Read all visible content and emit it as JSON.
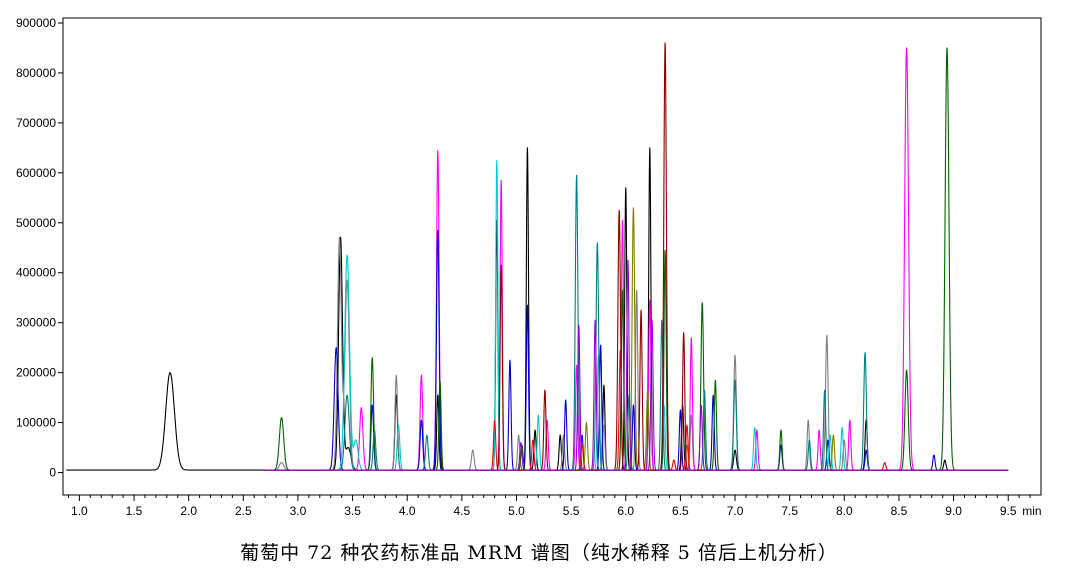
{
  "chart_data": {
    "type": "line",
    "title": "葡萄中 72 种农药标准品 MRM 谱图（纯水稀释 5 倍后上机分析）",
    "xlabel": "min",
    "ylabel": "",
    "xlim": [
      0.85,
      9.8
    ],
    "ylim": [
      -45000,
      910000
    ],
    "grid": false,
    "x_ticks": [
      1.0,
      1.5,
      2.0,
      2.5,
      3.0,
      3.5,
      4.0,
      4.5,
      5.0,
      5.5,
      6.0,
      6.5,
      7.0,
      7.5,
      8.0,
      8.5,
      9.0,
      9.5
    ],
    "x_tick_labels": [
      "1.0",
      "1.5",
      "2.0",
      "2.5",
      "3.0",
      "3.5",
      "4.0",
      "4.5",
      "5.0",
      "5.5",
      "6.0",
      "6.5",
      "7.0",
      "7.5",
      "8.0",
      "8.5",
      "9.0",
      "9.5"
    ],
    "x_unit_label": "min",
    "y_ticks": [
      0,
      100000,
      200000,
      300000,
      400000,
      500000,
      600000,
      700000,
      800000,
      900000
    ],
    "y_tick_labels": [
      "0",
      "100000",
      "200000",
      "300000",
      "400000",
      "500000",
      "600000",
      "700000",
      "800000",
      "900000"
    ],
    "baseline": 5000,
    "series": [
      {
        "color": "#000000",
        "peaks": [
          [
            1.83,
            195000,
            0.04
          ],
          [
            3.39,
            465000,
            0.018
          ],
          [
            3.46,
            45000,
            0.025
          ],
          [
            3.9,
            150000,
            0.012
          ],
          [
            4.28,
            150000,
            0.01
          ],
          [
            4.82,
            500000,
            0.01
          ],
          [
            5.1,
            645000,
            0.01
          ],
          [
            5.17,
            80000,
            0.01
          ],
          [
            5.4,
            70000,
            0.01
          ],
          [
            5.8,
            170000,
            0.01
          ],
          [
            6.0,
            565000,
            0.01
          ],
          [
            6.22,
            645000,
            0.01
          ],
          [
            6.52,
            130000,
            0.01
          ],
          [
            7.0,
            40000,
            0.012
          ],
          [
            8.2,
            100000,
            0.01
          ],
          [
            8.92,
            20000,
            0.01
          ]
        ]
      },
      {
        "color": "#808080",
        "peaks": [
          [
            1.83,
            15000,
            0.04
          ],
          [
            2.85,
            15000,
            0.02
          ],
          [
            3.38,
            465000,
            0.018
          ],
          [
            3.45,
            380000,
            0.02
          ],
          [
            3.9,
            190000,
            0.012
          ],
          [
            4.6,
            40000,
            0.012
          ],
          [
            5.02,
            70000,
            0.01
          ],
          [
            5.43,
            70000,
            0.01
          ],
          [
            5.8,
            90000,
            0.01
          ],
          [
            6.1,
            360000,
            0.01
          ],
          [
            6.6,
            110000,
            0.01
          ],
          [
            7.0,
            230000,
            0.012
          ],
          [
            7.67,
            100000,
            0.01
          ],
          [
            7.84,
            270000,
            0.012
          ],
          [
            8.0,
            60000,
            0.01
          ]
        ]
      },
      {
        "color": "#ff00ff",
        "peaks": [
          [
            1.83,
            125000,
            0.04
          ],
          [
            3.58,
            125000,
            0.015
          ],
          [
            4.13,
            190000,
            0.012
          ],
          [
            4.28,
            640000,
            0.012
          ],
          [
            4.86,
            580000,
            0.01
          ],
          [
            5.28,
            100000,
            0.01
          ],
          [
            5.55,
            210000,
            0.01
          ],
          [
            5.97,
            500000,
            0.01
          ],
          [
            6.22,
            340000,
            0.01
          ],
          [
            6.6,
            265000,
            0.01
          ],
          [
            7.2,
            80000,
            0.01
          ],
          [
            7.77,
            80000,
            0.01
          ],
          [
            8.05,
            100000,
            0.01
          ],
          [
            8.57,
            845000,
            0.018
          ]
        ]
      },
      {
        "color": "#0000cc",
        "peaks": [
          [
            1.83,
            45000,
            0.04
          ],
          [
            3.35,
            245000,
            0.018
          ],
          [
            3.68,
            130000,
            0.012
          ],
          [
            4.13,
            100000,
            0.012
          ],
          [
            4.28,
            480000,
            0.012
          ],
          [
            4.94,
            220000,
            0.01
          ],
          [
            5.1,
            330000,
            0.01
          ],
          [
            5.45,
            140000,
            0.01
          ],
          [
            5.6,
            70000,
            0.01
          ],
          [
            5.77,
            250000,
            0.01
          ],
          [
            6.07,
            130000,
            0.01
          ],
          [
            6.5,
            120000,
            0.01
          ],
          [
            6.8,
            150000,
            0.01
          ],
          [
            7.42,
            50000,
            0.01
          ],
          [
            7.85,
            60000,
            0.01
          ],
          [
            8.2,
            40000,
            0.01
          ],
          [
            8.82,
            30000,
            0.01
          ]
        ]
      },
      {
        "color": "#00cccc",
        "peaks": [
          [
            3.45,
            430000,
            0.022
          ],
          [
            3.53,
            60000,
            0.02
          ],
          [
            3.92,
            90000,
            0.012
          ],
          [
            4.82,
            620000,
            0.01
          ],
          [
            5.2,
            110000,
            0.01
          ],
          [
            5.75,
            230000,
            0.01
          ],
          [
            6.35,
            130000,
            0.01
          ],
          [
            7.18,
            85000,
            0.01
          ],
          [
            7.87,
            70000,
            0.01
          ],
          [
            7.98,
            85000,
            0.01
          ]
        ]
      },
      {
        "color": "#006400",
        "peaks": [
          [
            2.85,
            105000,
            0.02
          ],
          [
            3.68,
            225000,
            0.012
          ],
          [
            4.3,
            180000,
            0.01
          ],
          [
            5.05,
            50000,
            0.01
          ],
          [
            5.97,
            360000,
            0.01
          ],
          [
            6.36,
            440000,
            0.01
          ],
          [
            6.7,
            335000,
            0.012
          ],
          [
            6.82,
            180000,
            0.01
          ],
          [
            7.42,
            80000,
            0.01
          ],
          [
            8.57,
            200000,
            0.015
          ],
          [
            8.94,
            845000,
            0.018
          ]
        ]
      },
      {
        "color": "#008080",
        "peaks": [
          [
            3.45,
            150000,
            0.02
          ],
          [
            3.7,
            80000,
            0.012
          ],
          [
            4.18,
            70000,
            0.012
          ],
          [
            5.55,
            590000,
            0.012
          ],
          [
            5.74,
            455000,
            0.012
          ],
          [
            6.03,
            150000,
            0.01
          ],
          [
            6.33,
            300000,
            0.01
          ],
          [
            6.72,
            160000,
            0.01
          ],
          [
            7.0,
            180000,
            0.012
          ],
          [
            7.68,
            60000,
            0.01
          ],
          [
            7.82,
            160000,
            0.01
          ],
          [
            8.19,
            235000,
            0.012
          ]
        ]
      },
      {
        "color": "#808000",
        "peaks": [
          [
            5.64,
            95000,
            0.01
          ],
          [
            6.07,
            525000,
            0.012
          ],
          [
            6.2,
            160000,
            0.01
          ],
          [
            6.56,
            50000,
            0.01
          ],
          [
            7.9,
            70000,
            0.01
          ]
        ]
      },
      {
        "color": "#ff0000",
        "peaks": [
          [
            4.8,
            100000,
            0.01
          ],
          [
            5.15,
            60000,
            0.01
          ],
          [
            5.6,
            50000,
            0.01
          ],
          [
            5.95,
            240000,
            0.01
          ],
          [
            6.44,
            20000,
            0.01
          ],
          [
            6.56,
            90000,
            0.01
          ],
          [
            8.37,
            15000,
            0.01
          ]
        ]
      },
      {
        "color": "#8b0000",
        "peaks": [
          [
            4.86,
            410000,
            0.01
          ],
          [
            5.26,
            160000,
            0.01
          ],
          [
            5.94,
            520000,
            0.012
          ],
          [
            6.14,
            320000,
            0.01
          ],
          [
            6.36,
            855000,
            0.012
          ],
          [
            6.53,
            275000,
            0.01
          ]
        ]
      },
      {
        "color": "#9400d3",
        "peaks": [
          [
            5.04,
            55000,
            0.01
          ],
          [
            5.57,
            290000,
            0.01
          ],
          [
            5.72,
            300000,
            0.01
          ],
          [
            6.02,
            420000,
            0.01
          ],
          [
            6.24,
            300000,
            0.01
          ],
          [
            6.69,
            130000,
            0.01
          ]
        ]
      }
    ]
  }
}
